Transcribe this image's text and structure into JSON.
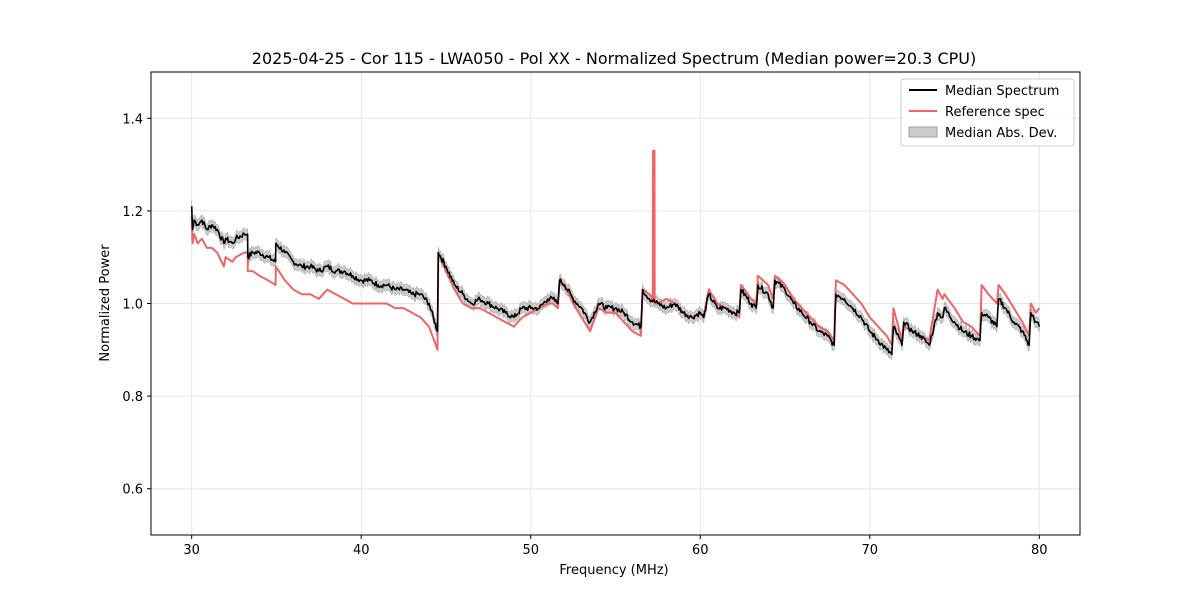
{
  "chart_data": {
    "type": "line",
    "title": "2025-04-25 - Cor 115 - LWA050 - Pol XX - Normalized Spectrum (Median power=20.3 CPU)",
    "xlabel": "Frequency (MHz)",
    "ylabel": "Normalized Power",
    "xlim": [
      27.6,
      82.4
    ],
    "ylim": [
      0.5,
      1.5
    ],
    "xticks": [
      30,
      40,
      50,
      60,
      70,
      80
    ],
    "yticks": [
      0.6,
      0.8,
      1.0,
      1.2,
      1.4
    ],
    "xtick_labels": [
      "30",
      "40",
      "50",
      "60",
      "70",
      "80"
    ],
    "ytick_labels": [
      "0.6",
      "0.8",
      "1.0",
      "1.2",
      "1.4"
    ],
    "grid": true,
    "legend_position": "top-right",
    "colors": {
      "median": "#000000",
      "reference": "#f06464",
      "mad_fill": "#bdbdbd",
      "mad_edge": "#9e9e9e",
      "grid": "#e6e6e6"
    },
    "legend": [
      {
        "label": "Median Spectrum",
        "kind": "line",
        "color": "#000000"
      },
      {
        "label": "Reference spec",
        "kind": "line",
        "color": "#f06464"
      },
      {
        "label": "Median Abs. Dev.",
        "kind": "patch",
        "color": "#bdbdbd"
      }
    ],
    "series": [
      {
        "name": "Median Spectrum",
        "x": [
          30.0,
          30.05,
          30.15,
          30.35,
          30.6,
          30.9,
          31.2,
          31.5,
          31.9,
          32.0,
          32.4,
          32.6,
          33.1,
          33.3,
          33.31,
          33.6,
          34.0,
          34.5,
          34.95,
          34.96,
          35.5,
          36.0,
          36.5,
          37.0,
          37.5,
          38.0,
          38.5,
          39.0,
          39.5,
          40.0,
          40.5,
          41.0,
          41.5,
          42.0,
          42.5,
          43.0,
          43.5,
          44.0,
          44.5,
          44.55,
          45.0,
          45.5,
          46.0,
          46.5,
          47.0,
          47.5,
          48.0,
          48.5,
          49.0,
          49.5,
          50.0,
          50.5,
          51.0,
          51.3,
          51.6,
          51.7,
          52.0,
          52.5,
          53.0,
          53.5,
          54.0,
          54.5,
          55.0,
          55.5,
          56.0,
          56.5,
          56.6,
          57.0,
          57.5,
          58.0,
          58.5,
          59.0,
          59.5,
          60.0,
          60.2,
          60.5,
          61.0,
          61.5,
          62.0,
          62.3,
          62.4,
          63.0,
          63.3,
          63.4,
          64.0,
          64.3,
          64.4,
          65.0,
          65.5,
          66.0,
          66.5,
          67.0,
          67.5,
          67.9,
          68.0,
          68.5,
          69.0,
          69.5,
          70.0,
          70.5,
          71.0,
          71.3,
          71.4,
          71.9,
          72.0,
          72.5,
          73.0,
          73.5,
          74.0,
          74.3,
          74.4,
          75.0,
          75.5,
          76.0,
          76.5,
          76.6,
          77.0,
          77.5,
          77.6,
          78.0,
          78.5,
          79.0,
          79.4,
          79.5,
          79.8,
          80.0
        ],
        "values": [
          1.21,
          1.16,
          1.18,
          1.17,
          1.18,
          1.16,
          1.17,
          1.16,
          1.13,
          1.14,
          1.13,
          1.14,
          1.15,
          1.15,
          1.1,
          1.11,
          1.11,
          1.1,
          1.09,
          1.13,
          1.11,
          1.09,
          1.08,
          1.08,
          1.07,
          1.08,
          1.07,
          1.07,
          1.06,
          1.05,
          1.05,
          1.04,
          1.04,
          1.03,
          1.03,
          1.02,
          1.02,
          1.0,
          0.94,
          1.11,
          1.08,
          1.04,
          1.02,
          1.0,
          1.01,
          1.0,
          0.99,
          0.98,
          0.97,
          0.99,
          0.99,
          0.99,
          1.01,
          1.01,
          1.0,
          1.05,
          1.04,
          1.01,
          0.99,
          0.96,
          1.0,
          0.99,
          0.99,
          0.98,
          0.96,
          0.95,
          1.03,
          1.01,
          1.0,
          0.99,
          1.0,
          0.98,
          0.97,
          0.98,
          0.97,
          1.02,
          0.99,
          0.99,
          0.98,
          0.98,
          1.03,
          1.0,
          0.99,
          1.04,
          1.02,
          0.99,
          1.05,
          1.03,
          1.0,
          0.98,
          0.96,
          0.94,
          0.93,
          0.91,
          1.02,
          1.01,
          0.99,
          0.97,
          0.94,
          0.92,
          0.9,
          0.89,
          0.95,
          0.91,
          0.96,
          0.94,
          0.93,
          0.91,
          0.98,
          0.97,
          0.99,
          0.96,
          0.94,
          0.93,
          0.92,
          0.98,
          0.97,
          0.95,
          1.01,
          0.99,
          0.96,
          0.94,
          0.91,
          0.98,
          0.96,
          0.95
        ]
      },
      {
        "name": "Reference spec",
        "x": [
          30.0,
          30.05,
          30.15,
          30.35,
          30.6,
          30.9,
          31.2,
          31.5,
          31.9,
          32.0,
          32.4,
          32.6,
          33.1,
          33.3,
          33.31,
          33.6,
          34.0,
          34.5,
          34.95,
          34.96,
          35.5,
          36.0,
          36.5,
          37.0,
          37.5,
          38.0,
          38.5,
          39.0,
          39.5,
          40.0,
          40.5,
          41.0,
          41.5,
          42.0,
          42.5,
          43.0,
          43.5,
          44.0,
          44.5,
          44.55,
          45.0,
          45.5,
          46.0,
          46.5,
          47.0,
          47.5,
          48.0,
          48.5,
          49.0,
          49.5,
          50.0,
          50.5,
          51.0,
          51.3,
          51.6,
          51.7,
          52.0,
          52.5,
          53.0,
          53.5,
          54.0,
          54.5,
          55.0,
          55.5,
          56.0,
          56.5,
          56.6,
          57.0,
          57.2,
          57.21,
          57.3,
          57.31,
          57.5,
          58.0,
          58.5,
          59.0,
          59.5,
          60.0,
          60.2,
          60.5,
          61.0,
          61.5,
          62.0,
          62.3,
          62.4,
          63.0,
          63.3,
          63.4,
          64.0,
          64.3,
          64.4,
          65.0,
          65.5,
          66.0,
          66.5,
          67.0,
          67.5,
          67.9,
          68.0,
          68.5,
          69.0,
          69.5,
          70.0,
          70.5,
          71.0,
          71.3,
          71.4,
          71.9,
          72.0,
          72.5,
          73.0,
          73.5,
          74.0,
          74.3,
          74.4,
          75.0,
          75.5,
          76.0,
          76.5,
          76.6,
          77.0,
          77.5,
          77.6,
          78.0,
          78.5,
          79.0,
          79.4,
          79.5,
          79.8,
          80.0
        ],
        "values": [
          1.19,
          1.13,
          1.15,
          1.13,
          1.14,
          1.12,
          1.12,
          1.11,
          1.08,
          1.1,
          1.09,
          1.1,
          1.11,
          1.11,
          1.07,
          1.07,
          1.06,
          1.05,
          1.04,
          1.08,
          1.05,
          1.03,
          1.02,
          1.02,
          1.01,
          1.03,
          1.02,
          1.01,
          1.0,
          1.0,
          1.0,
          1.0,
          1.0,
          0.99,
          0.99,
          0.98,
          0.97,
          0.95,
          0.9,
          1.11,
          1.07,
          1.03,
          1.0,
          0.99,
          0.99,
          0.98,
          0.97,
          0.96,
          0.95,
          0.97,
          0.98,
          0.99,
          1.0,
          1.0,
          0.99,
          1.05,
          1.04,
          1.0,
          0.97,
          0.94,
          0.99,
          0.98,
          0.98,
          0.96,
          0.94,
          0.93,
          1.03,
          1.02,
          1.01,
          1.33,
          1.33,
          1.0,
          1.0,
          1.01,
          1.0,
          0.98,
          0.97,
          0.98,
          0.97,
          1.03,
          1.0,
          0.99,
          0.98,
          0.97,
          1.04,
          1.01,
          1.0,
          1.06,
          1.04,
          1.01,
          1.06,
          1.04,
          1.01,
          0.99,
          0.97,
          0.95,
          0.94,
          0.92,
          1.05,
          1.04,
          1.02,
          1.0,
          0.97,
          0.95,
          0.93,
          0.91,
          0.99,
          0.92,
          0.95,
          0.94,
          0.93,
          0.92,
          1.03,
          1.01,
          1.02,
          0.99,
          0.96,
          0.95,
          0.93,
          1.04,
          1.02,
          1.0,
          1.04,
          1.02,
          0.99,
          0.96,
          0.93,
          1.0,
          0.98,
          0.99
        ]
      },
      {
        "name": "Median Abs. Dev.",
        "spread": 0.012
      }
    ]
  }
}
